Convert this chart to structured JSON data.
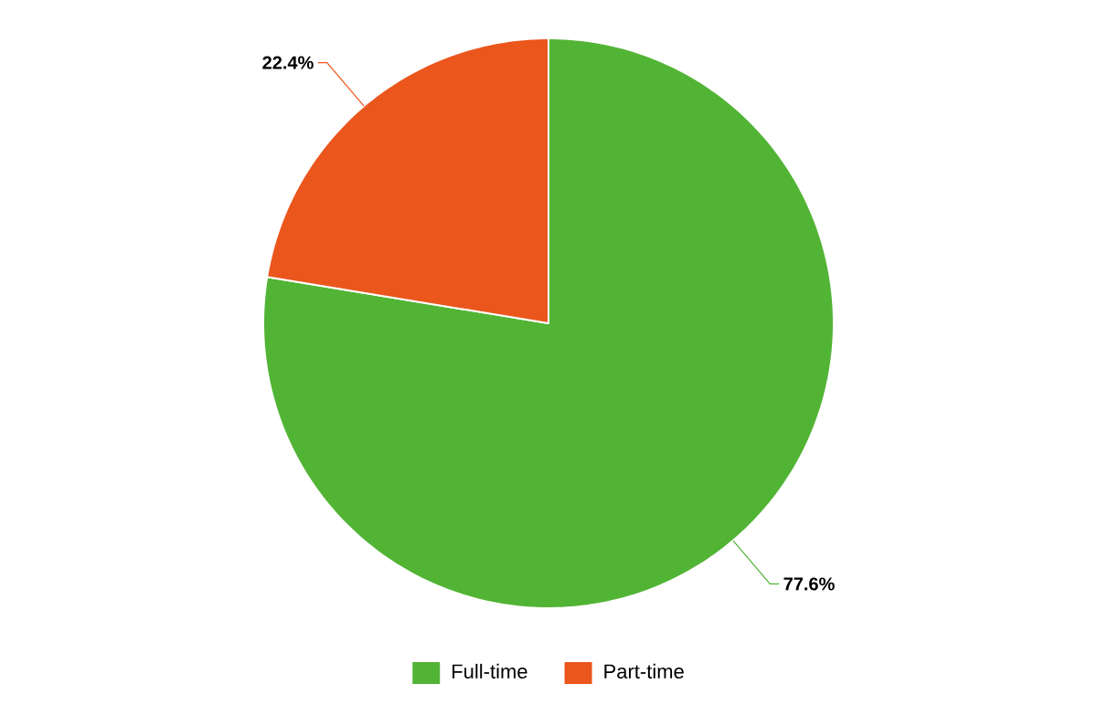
{
  "chart_data": {
    "type": "pie",
    "categories": [
      "Full-time",
      "Part-time"
    ],
    "values": [
      77.6,
      22.4
    ],
    "colors": [
      "#52b435",
      "#eb561c"
    ],
    "value_labels": [
      "77.6%",
      "22.4%"
    ],
    "legend": "bottom"
  }
}
